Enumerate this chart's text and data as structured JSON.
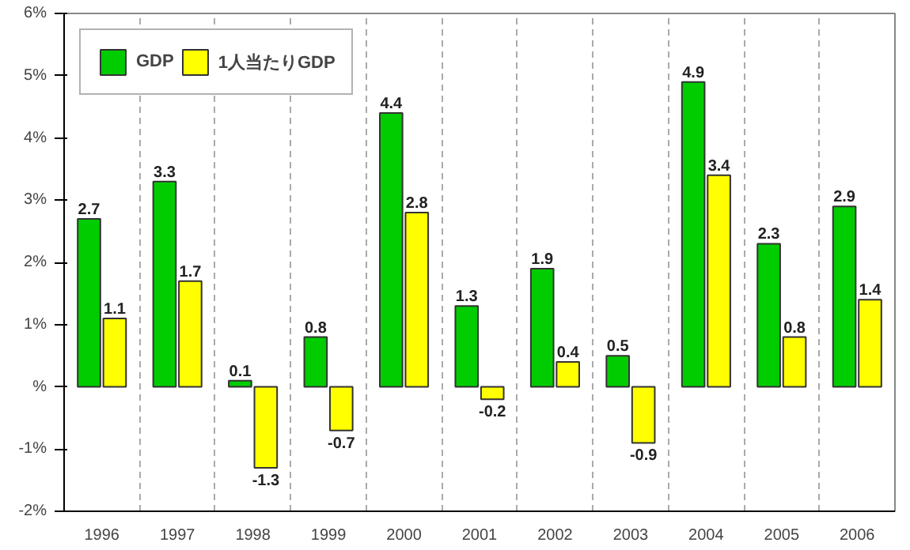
{
  "chart_data": {
    "type": "bar",
    "categories": [
      "1996",
      "1997",
      "1998",
      "1999",
      "2000",
      "2001",
      "2002",
      "2003",
      "2004",
      "2005",
      "2006"
    ],
    "series": [
      {
        "name": "GDP",
        "color": "#00cc00",
        "values": [
          2.7,
          3.3,
          0.1,
          0.8,
          4.4,
          1.3,
          1.9,
          0.5,
          4.9,
          2.3,
          2.9
        ]
      },
      {
        "name": "1人当たりGDP",
        "color": "#ffff00",
        "values": [
          1.1,
          1.7,
          -1.3,
          -0.7,
          2.8,
          -0.2,
          0.4,
          -0.9,
          3.4,
          0.8,
          1.4
        ]
      }
    ],
    "ylim": [
      -2,
      6
    ],
    "yticks": [
      {
        "value": -2,
        "label": "-2%"
      },
      {
        "value": -1,
        "label": "-1%"
      },
      {
        "value": 0,
        "label": "%"
      },
      {
        "value": 1,
        "label": "1%"
      },
      {
        "value": 2,
        "label": "2%"
      },
      {
        "value": 3,
        "label": "3%"
      },
      {
        "value": 4,
        "label": "4%"
      },
      {
        "value": 5,
        "label": "5%"
      },
      {
        "value": 6,
        "label": "6%"
      }
    ],
    "data_labels": true,
    "grid": "x",
    "legend": "top left"
  }
}
